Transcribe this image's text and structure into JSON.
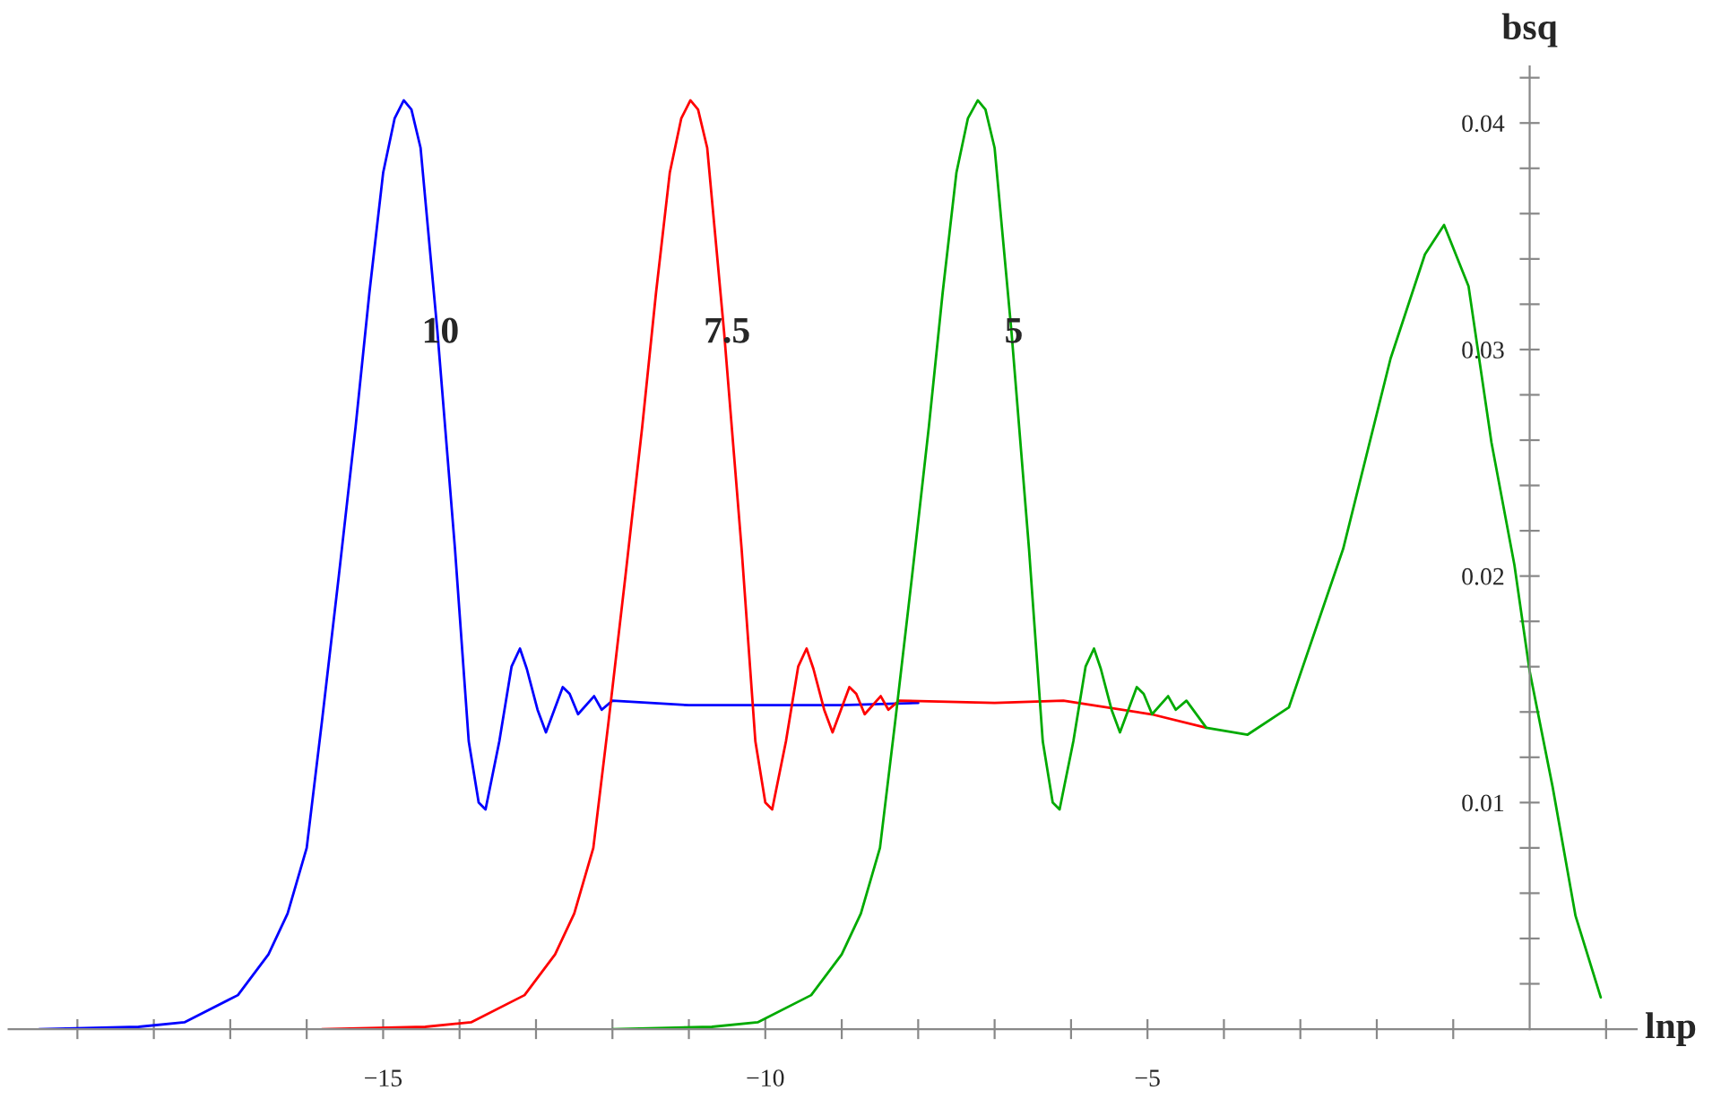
{
  "chart_data": {
    "type": "line",
    "xlabel": "lnp",
    "ylabel": "bsq",
    "xlim": [
      -19.9,
      1.4
    ],
    "ylim": [
      0,
      0.0425
    ],
    "xticks": [
      {
        "value": -19,
        "label": null
      },
      {
        "value": -18,
        "label": null
      },
      {
        "value": -17,
        "label": null
      },
      {
        "value": -16,
        "label": null
      },
      {
        "value": -15,
        "label": "−15"
      },
      {
        "value": -14,
        "label": null
      },
      {
        "value": -13,
        "label": null
      },
      {
        "value": -12,
        "label": null
      },
      {
        "value": -11,
        "label": null
      },
      {
        "value": -10,
        "label": "−10"
      },
      {
        "value": -9,
        "label": null
      },
      {
        "value": -8,
        "label": null
      },
      {
        "value": -7,
        "label": null
      },
      {
        "value": -6,
        "label": null
      },
      {
        "value": -5,
        "label": "−5"
      },
      {
        "value": -4,
        "label": null
      },
      {
        "value": -3,
        "label": null
      },
      {
        "value": -2,
        "label": null
      },
      {
        "value": -1,
        "label": null
      },
      {
        "value": 1,
        "label": null
      }
    ],
    "yticks": [
      {
        "value": 0.002,
        "label": null
      },
      {
        "value": 0.004,
        "label": null
      },
      {
        "value": 0.006,
        "label": null
      },
      {
        "value": 0.008,
        "label": null
      },
      {
        "value": 0.01,
        "label": "0.01"
      },
      {
        "value": 0.012,
        "label": null
      },
      {
        "value": 0.014,
        "label": null
      },
      {
        "value": 0.016,
        "label": null
      },
      {
        "value": 0.018,
        "label": null
      },
      {
        "value": 0.02,
        "label": "0.02"
      },
      {
        "value": 0.022,
        "label": null
      },
      {
        "value": 0.024,
        "label": null
      },
      {
        "value": 0.026,
        "label": null
      },
      {
        "value": 0.028,
        "label": null
      },
      {
        "value": 0.03,
        "label": "0.03"
      },
      {
        "value": 0.032,
        "label": null
      },
      {
        "value": 0.034,
        "label": null
      },
      {
        "value": 0.036,
        "label": null
      },
      {
        "value": 0.038,
        "label": null
      },
      {
        "value": 0.04,
        "label": "0.04"
      },
      {
        "value": 0.042,
        "label": null
      }
    ],
    "grid": false,
    "legend": false,
    "annotations": [
      {
        "text": "10",
        "x": -14.25,
        "y": 0.0307
      },
      {
        "text": "7.5",
        "x": -10.5,
        "y": 0.0307
      },
      {
        "text": "5",
        "x": -6.75,
        "y": 0.0307
      }
    ],
    "series": [
      {
        "color": "#0000ff",
        "x": [
          -19.5,
          -18.2,
          -17.6,
          -16.9,
          -16.5,
          -16.25,
          -16.0,
          -15.8,
          -15.58,
          -15.36,
          -15.18,
          -15.0,
          -14.85,
          -14.73,
          -14.63,
          -14.51,
          -14.29,
          -14.06,
          -13.88,
          -13.75,
          -13.66,
          -13.48,
          -13.32,
          -13.21,
          -13.12,
          -12.98,
          -12.87,
          -12.65,
          -12.56,
          -12.45,
          -12.24,
          -12.14,
          -12.0,
          -11.0,
          -10.0,
          -9.0,
          -8.0
        ],
        "values": [
          0.0,
          0.0001,
          0.0003,
          0.0015,
          0.0033,
          0.0051,
          0.008,
          0.0136,
          0.02,
          0.0266,
          0.0325,
          0.0378,
          0.0402,
          0.041,
          0.0406,
          0.0389,
          0.0308,
          0.0212,
          0.0127,
          0.01,
          0.0097,
          0.0127,
          0.016,
          0.0168,
          0.0159,
          0.0141,
          0.0131,
          0.0151,
          0.0148,
          0.0139,
          0.0147,
          0.0141,
          0.0145,
          0.0143,
          0.0143,
          0.0143,
          0.0144
        ]
      },
      {
        "color": "#ff0000",
        "x": [
          -15.8,
          -14.45,
          -13.85,
          -13.15,
          -12.75,
          -12.5,
          -12.25,
          -12.05,
          -11.83,
          -11.61,
          -11.43,
          -11.25,
          -11.1,
          -10.98,
          -10.88,
          -10.76,
          -10.54,
          -10.31,
          -10.13,
          -10.0,
          -9.91,
          -9.73,
          -9.57,
          -9.46,
          -9.37,
          -9.23,
          -9.12,
          -8.9,
          -8.81,
          -8.7,
          -8.49,
          -8.39,
          -8.25,
          -7.0,
          -6.1,
          -4.95,
          -4.23
        ],
        "values": [
          0.0,
          0.0001,
          0.0003,
          0.0015,
          0.0033,
          0.0051,
          0.008,
          0.0136,
          0.02,
          0.0266,
          0.0325,
          0.0378,
          0.0402,
          0.041,
          0.0406,
          0.0389,
          0.0308,
          0.0212,
          0.0127,
          0.01,
          0.0097,
          0.0127,
          0.016,
          0.0168,
          0.0159,
          0.0141,
          0.0131,
          0.0151,
          0.0148,
          0.0139,
          0.0147,
          0.0141,
          0.0145,
          0.0144,
          0.0145,
          0.0139,
          0.0133
        ]
      },
      {
        "color": "#00aa00",
        "x": [
          -12.0,
          -10.7,
          -10.1,
          -9.4,
          -9.0,
          -8.75,
          -8.5,
          -8.3,
          -8.08,
          -7.86,
          -7.68,
          -7.5,
          -7.35,
          -7.22,
          -7.12,
          -7.0,
          -6.78,
          -6.55,
          -6.37,
          -6.24,
          -6.15,
          -5.97,
          -5.81,
          -5.7,
          -5.61,
          -5.47,
          -5.36,
          -5.14,
          -5.05,
          -4.94,
          -4.73,
          -4.63,
          -4.49,
          -4.23,
          -3.69,
          -3.15,
          -2.44,
          -1.82,
          -1.37,
          -1.12,
          -0.8,
          -0.5,
          -0.2,
          0,
          0.3,
          0.6,
          0.93
        ],
        "values": [
          0.0,
          0.0001,
          0.0003,
          0.0015,
          0.0033,
          0.0051,
          0.008,
          0.0136,
          0.02,
          0.0266,
          0.0325,
          0.0378,
          0.0402,
          0.041,
          0.0406,
          0.0389,
          0.0308,
          0.0212,
          0.0127,
          0.01,
          0.0097,
          0.0127,
          0.016,
          0.0168,
          0.0159,
          0.0141,
          0.0131,
          0.0151,
          0.0148,
          0.0139,
          0.0147,
          0.0141,
          0.0145,
          0.0133,
          0.013,
          0.0142,
          0.0212,
          0.0296,
          0.0342,
          0.0355,
          0.0328,
          0.0259,
          0.0205,
          0.0158,
          0.0107,
          0.005,
          0.0014
        ]
      }
    ]
  }
}
